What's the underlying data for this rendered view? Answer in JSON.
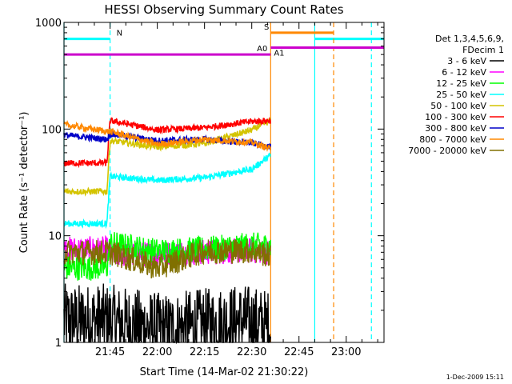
{
  "chart_data": {
    "type": "line",
    "title": "HESSI Observing Summary Count Rates",
    "xlabel": "Start Time (14-Mar-02 21:30:22)",
    "ylabel": "Count Rate (s⁻¹ detector⁻¹)",
    "y_scale": "log",
    "ylim": [
      1,
      1000
    ],
    "xlim": [
      "21:30:22",
      "23:12:00"
    ],
    "x_ticks": [
      "21:45",
      "22:00",
      "22:15",
      "22:30",
      "22:45",
      "23:00"
    ],
    "y_ticks": [
      "1",
      "10",
      "100",
      "1000"
    ],
    "footer": "1-Dec-2009 15:11",
    "legend_position": "right",
    "legend_header": [
      "Det 1,3,4,5,6,9,",
      "FDecim 1"
    ],
    "series": [
      {
        "name": "3 - 6 keV",
        "color": "#000000",
        "points": [
          [
            "21:30:22",
            1.6
          ],
          [
            "21:44:00",
            1.6
          ],
          [
            "22:02:00",
            1.3
          ],
          [
            "22:27:00",
            1.6
          ],
          [
            "22:36:00",
            1.4
          ]
        ]
      },
      {
        "name": "6 - 12 keV",
        "color": "#ff00ff",
        "points": [
          [
            "21:30:22",
            7.5
          ],
          [
            "21:44:00",
            7.5
          ],
          [
            "21:45:00",
            6.5
          ],
          [
            "22:00:00",
            6.8
          ],
          [
            "22:15:00",
            7.0
          ],
          [
            "22:30:00",
            7.2
          ],
          [
            "22:36:00",
            7.0
          ]
        ]
      },
      {
        "name": "12 - 25 keV",
        "color": "#00ff00",
        "points": [
          [
            "21:30:22",
            5.0
          ],
          [
            "21:44:00",
            5.0
          ],
          [
            "21:45:00",
            8.5
          ],
          [
            "22:00:00",
            7.2
          ],
          [
            "22:15:00",
            7.5
          ],
          [
            "22:30:00",
            8.2
          ],
          [
            "22:36:00",
            8.0
          ]
        ]
      },
      {
        "name": "25 - 50 keV",
        "color": "#00ffff",
        "points": [
          [
            "21:30:22",
            13
          ],
          [
            "21:44:00",
            13
          ],
          [
            "21:45:00",
            36
          ],
          [
            "22:00:00",
            33
          ],
          [
            "22:15:00",
            35
          ],
          [
            "22:30:00",
            42
          ],
          [
            "22:36:00",
            57
          ]
        ]
      },
      {
        "name": "50 - 100 keV",
        "color": "#d4c400",
        "points": [
          [
            "21:30:22",
            26
          ],
          [
            "21:44:00",
            26
          ],
          [
            "21:45:00",
            78
          ],
          [
            "22:00:00",
            68
          ],
          [
            "22:15:00",
            73
          ],
          [
            "22:30:00",
            98
          ],
          [
            "22:36:00",
            120
          ]
        ]
      },
      {
        "name": "100 - 300 keV",
        "color": "#ff0000",
        "points": [
          [
            "21:30:22",
            48
          ],
          [
            "21:44:00",
            48
          ],
          [
            "21:45:00",
            120
          ],
          [
            "22:00:00",
            98
          ],
          [
            "22:15:00",
            103
          ],
          [
            "22:30:00",
            118
          ],
          [
            "22:36:00",
            120
          ]
        ]
      },
      {
        "name": "300 - 800 keV",
        "color": "#0000c8",
        "points": [
          [
            "21:30:22",
            88
          ],
          [
            "21:44:00",
            80
          ],
          [
            "21:45:00",
            90
          ],
          [
            "22:00:00",
            78
          ],
          [
            "22:15:00",
            80
          ],
          [
            "22:30:00",
            74
          ],
          [
            "22:36:00",
            68
          ]
        ]
      },
      {
        "name": "800 - 7000 keV",
        "color": "#ff8800",
        "points": [
          [
            "21:30:22",
            110
          ],
          [
            "21:44:00",
            95
          ],
          [
            "21:45:00",
            95
          ],
          [
            "22:00:00",
            72
          ],
          [
            "22:15:00",
            80
          ],
          [
            "22:30:00",
            75
          ],
          [
            "22:36:00",
            65
          ]
        ]
      },
      {
        "name": "7000 - 20000 keV",
        "color": "#807000",
        "points": [
          [
            "21:30:22",
            7.0
          ],
          [
            "21:44:00",
            7.0
          ],
          [
            "21:45:00",
            7.0
          ],
          [
            "22:00:00",
            5.0
          ],
          [
            "22:15:00",
            7.2
          ],
          [
            "22:30:00",
            7.2
          ],
          [
            "22:36:00",
            6.5
          ]
        ]
      }
    ],
    "annotations": [
      {
        "label": "N",
        "color": "#00ffff",
        "y": 700,
        "x_from": "21:30:22",
        "x_to": "21:45:00",
        "style": "bar"
      },
      {
        "label": "",
        "color": "#00ffff",
        "y": 700,
        "x_from": "22:50:00",
        "x_to": "23:12:00",
        "style": "bar"
      },
      {
        "label": "",
        "color": "#00ffff",
        "x": "21:30:22",
        "style": "solid"
      },
      {
        "label": "",
        "color": "#00ffff",
        "x": "22:50:00",
        "style": "solid"
      },
      {
        "label": "",
        "color": "#00ffff",
        "x": "21:45:00",
        "style": "dashed"
      },
      {
        "label": "",
        "color": "#00ffff",
        "x": "23:08:00",
        "style": "dashed"
      },
      {
        "label": "S",
        "color": "#ff8800",
        "y": 800,
        "x_from": "22:36:00",
        "x_to": "22:56:00",
        "style": "bar"
      },
      {
        "label": "",
        "color": "#ff8800",
        "x": "22:36:00",
        "style": "solid"
      },
      {
        "label": "",
        "color": "#ff8800",
        "x": "22:56:00",
        "style": "dashed"
      },
      {
        "label": "A0",
        "color": "#cc00cc",
        "y": 500,
        "x_from": "21:30:22",
        "x_to": "22:36:00",
        "style": "bar"
      },
      {
        "label": "A1",
        "color": "#cc00cc",
        "y": 580,
        "x_from": "22:36:00",
        "x_to": "23:12:00",
        "style": "bar"
      }
    ]
  }
}
